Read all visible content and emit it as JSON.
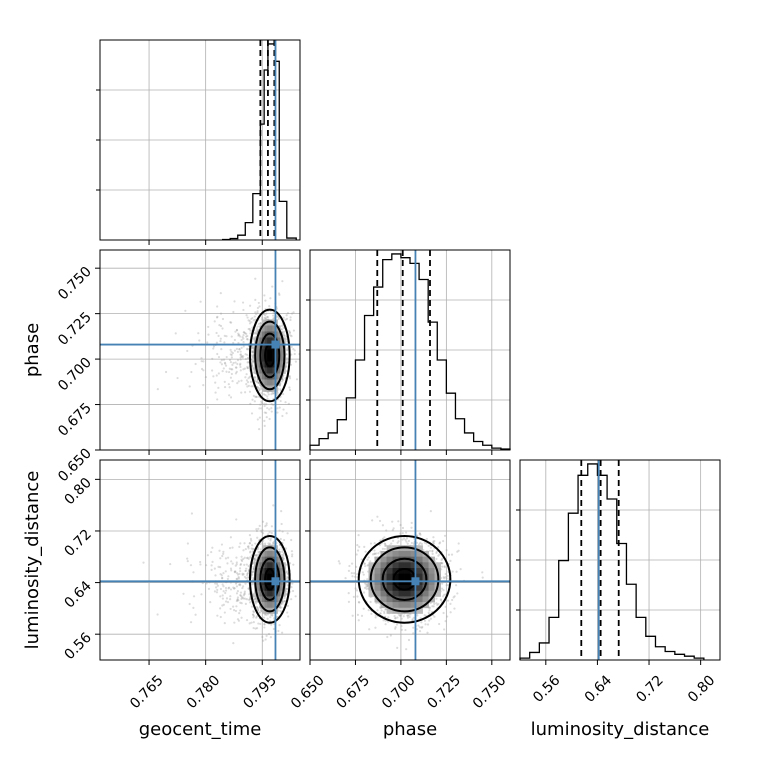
{
  "chart_data": {
    "type": "corner",
    "parameters": [
      "geocent_time",
      "phase",
      "luminosity_distance"
    ],
    "axis_labels": [
      "geocent_time",
      "phase",
      "luminosity_distance"
    ],
    "ranges": {
      "geocent_time": [
        0.752,
        0.805
      ],
      "phase": [
        0.65,
        0.76
      ],
      "luminosity_distance": [
        0.52,
        0.83
      ]
    },
    "ticks": {
      "geocent_time": [
        "0.765",
        "0.780",
        "0.795"
      ],
      "phase": [
        "0.650",
        "0.675",
        "0.700",
        "0.725",
        "0.750"
      ],
      "luminosity_distance": [
        "0.56",
        "0.64",
        "0.72",
        "0.80"
      ]
    },
    "truths": {
      "geocent_time": 0.7985,
      "phase": 0.708,
      "luminosity_distance": 0.642
    },
    "quantiles": {
      "geocent_time": [
        0.7945,
        0.7965,
        0.7982
      ],
      "phase": [
        0.687,
        0.701,
        0.716
      ],
      "luminosity_distance": [
        0.615,
        0.645,
        0.673
      ]
    },
    "histograms": {
      "geocent_time": {
        "edges": [
          0.7845,
          0.7865,
          0.7885,
          0.7905,
          0.7925,
          0.7945,
          0.7955,
          0.7965,
          0.7975,
          0.7985,
          0.7995,
          0.8015,
          0.804
        ],
        "counts": [
          0.005,
          0.015,
          0.05,
          0.18,
          0.48,
          1.2,
          1.76,
          2.03,
          2.03,
          1.85,
          0.4,
          0.02
        ]
      },
      "phase": {
        "edges": [
          0.65,
          0.655,
          0.66,
          0.665,
          0.67,
          0.675,
          0.68,
          0.685,
          0.69,
          0.695,
          0.7,
          0.705,
          0.71,
          0.715,
          0.72,
          0.725,
          0.73,
          0.735,
          0.74,
          0.745,
          0.75,
          0.755,
          0.76
        ],
        "counts": [
          0.05,
          0.12,
          0.18,
          0.32,
          0.55,
          0.95,
          1.42,
          1.72,
          2.01,
          2.07,
          2.03,
          1.97,
          1.8,
          1.35,
          0.95,
          0.6,
          0.33,
          0.18,
          0.09,
          0.05,
          0.02,
          0.01
        ]
      },
      "luminosity_distance": {
        "edges": [
          0.52,
          0.535,
          0.55,
          0.565,
          0.58,
          0.595,
          0.61,
          0.625,
          0.64,
          0.655,
          0.67,
          0.685,
          0.7,
          0.715,
          0.73,
          0.745,
          0.76,
          0.775,
          0.79,
          0.805
        ],
        "counts": [
          0.02,
          0.08,
          0.18,
          0.45,
          1.05,
          1.55,
          1.95,
          2.07,
          1.95,
          1.7,
          1.23,
          0.8,
          0.45,
          0.25,
          0.14,
          0.09,
          0.06,
          0.04,
          0.02
        ]
      }
    },
    "posterior_widths": {
      "geocent_time": 0.0025,
      "phase": 0.012,
      "luminosity_distance": 0.032
    },
    "posterior_centers": {
      "geocent_time": 0.797,
      "phase": 0.702,
      "luminosity_distance": 0.645
    }
  }
}
